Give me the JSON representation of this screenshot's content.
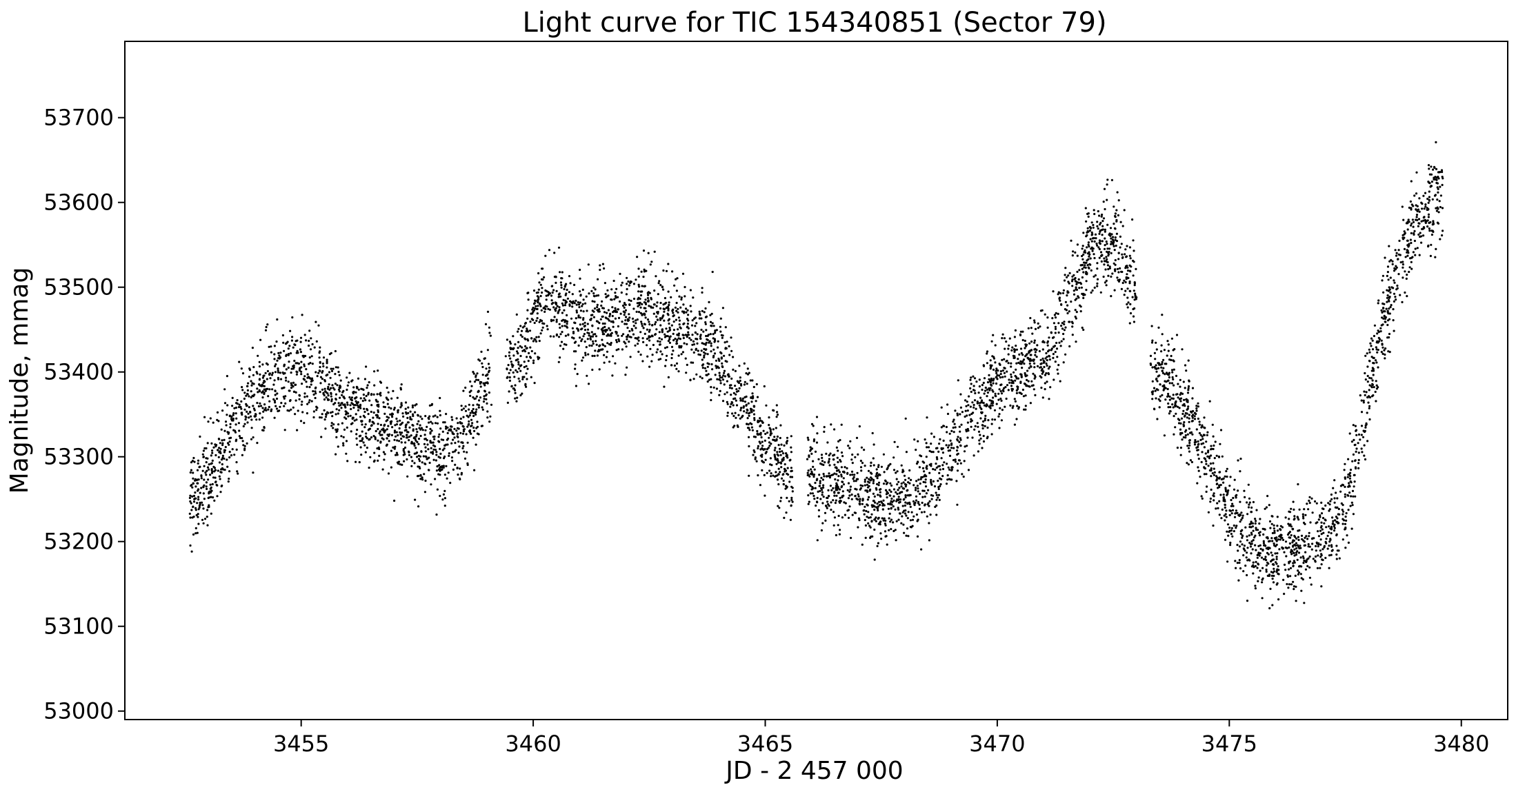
{
  "chart_data": {
    "type": "scatter",
    "title": "Light curve for TIC 154340851 (Sector 79)",
    "xlabel": "JD - 2 457 000",
    "ylabel": "Magnitude, mmag",
    "xlim": [
      3451.2,
      3481.0
    ],
    "ylim": [
      52990,
      53790
    ],
    "x_ticks": [
      3455,
      3460,
      3465,
      3470,
      3475,
      3480
    ],
    "y_ticks": [
      53000,
      53100,
      53200,
      53300,
      53400,
      53500,
      53600,
      53700
    ],
    "marker_color": "#000000",
    "grid": false,
    "legend": "none",
    "segments": [
      {
        "x": [
          3452.6,
          3453.0,
          3453.5,
          3454.0,
          3454.5,
          3455.0,
          3455.5,
          3456.0,
          3456.5,
          3457.0,
          3457.5,
          3458.0,
          3458.5,
          3459.1
        ],
        "y": [
          53250,
          53275,
          53330,
          53370,
          53400,
          53405,
          53380,
          53360,
          53345,
          53335,
          53320,
          53305,
          53330,
          53400
        ]
      },
      {
        "x": [
          3459.4,
          3459.8,
          3460.2,
          3460.7,
          3461.3,
          3462.0,
          3462.6,
          3463.2,
          3463.8,
          3464.2,
          3464.6,
          3465.0,
          3465.4,
          3465.6
        ],
        "y": [
          53395,
          53420,
          53480,
          53475,
          53455,
          53470,
          53465,
          53450,
          53435,
          53400,
          53360,
          53320,
          53290,
          53270
        ]
      },
      {
        "x": [
          3465.9,
          3466.4,
          3467.0,
          3467.5,
          3468.0,
          3468.5,
          3469.0,
          3469.5,
          3470.0,
          3470.5,
          3471.0,
          3471.5,
          3472.0,
          3472.5,
          3473.0
        ],
        "y": [
          53285,
          53275,
          53265,
          53245,
          53250,
          53270,
          53310,
          53350,
          53390,
          53400,
          53420,
          53470,
          53545,
          53555,
          53500
        ]
      },
      {
        "x": [
          3473.3,
          3473.8,
          3474.3,
          3474.8,
          3475.2,
          3475.6,
          3476.0,
          3476.5,
          3477.0,
          3477.5,
          3477.8,
          3478.2,
          3478.6,
          3479.0,
          3479.6
        ],
        "y": [
          53400,
          53380,
          53330,
          53270,
          53220,
          53195,
          53185,
          53190,
          53205,
          53240,
          53320,
          53430,
          53520,
          53580,
          53610
        ]
      }
    ]
  }
}
